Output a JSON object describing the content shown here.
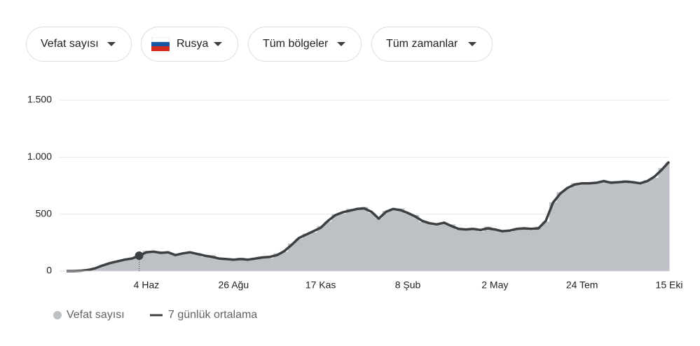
{
  "filters": [
    "Vefat sayısı",
    "Rusya",
    "Tüm bölgeler",
    "Tüm zamanlar"
  ],
  "chart_data": {
    "type": "bar-line",
    "categories": [
      null,
      null,
      null,
      null,
      null,
      null,
      null,
      null,
      null,
      null,
      null,
      "4 Haz",
      null,
      null,
      null,
      null,
      null,
      null,
      null,
      null,
      null,
      null,
      null,
      "26 Ağu",
      null,
      null,
      null,
      null,
      null,
      null,
      null,
      null,
      null,
      null,
      null,
      "17 Kas",
      null,
      null,
      null,
      null,
      null,
      null,
      null,
      null,
      null,
      null,
      null,
      "8 Şub",
      null,
      null,
      null,
      null,
      null,
      null,
      null,
      null,
      null,
      null,
      null,
      "2 May",
      null,
      null,
      null,
      null,
      null,
      null,
      null,
      null,
      null,
      null,
      null,
      "24 Tem",
      null,
      null,
      null,
      null,
      null,
      null,
      null,
      null,
      null,
      null,
      null,
      "15 Eki"
    ],
    "series": [
      {
        "name": "Vefat sayısı",
        "color": "#bdc1c6",
        "values": [
          0,
          0,
          4,
          12,
          22,
          55,
          68,
          90,
          95,
          118,
          128,
          178,
          165,
          168,
          159,
          148,
          152,
          170,
          158,
          122,
          140,
          104,
          110,
          95,
          117,
          96,
          114,
          128,
          113,
          155,
          169,
          242,
          284,
          328,
          338,
          395,
          434,
          498,
          503,
          546,
          539,
          562,
          510,
          464,
          528,
          533,
          550,
          504,
          492,
          430,
          424,
          418,
          413,
          410,
          364,
          369,
          378,
          348,
          390,
          359,
          362,
          345,
          374,
          383,
          358,
          390,
          434,
          604,
          692,
          724,
          772,
          760,
          774,
          783,
          778,
          790,
          774,
          797,
          770,
          774,
          798,
          818,
          905,
          954
        ]
      },
      {
        "name": "7 günlük ortalama",
        "color": "#3c4043",
        "values": [
          0,
          0,
          3,
          10,
          25,
          50,
          70,
          85,
          100,
          110,
          135,
          165,
          170,
          160,
          165,
          140,
          155,
          165,
          150,
          135,
          125,
          110,
          105,
          100,
          105,
          100,
          110,
          120,
          125,
          140,
          175,
          230,
          290,
          320,
          350,
          380,
          440,
          490,
          515,
          530,
          545,
          550,
          520,
          460,
          520,
          545,
          535,
          510,
          480,
          440,
          420,
          410,
          425,
          395,
          370,
          365,
          370,
          360,
          375,
          365,
          350,
          355,
          370,
          375,
          370,
          375,
          440,
          600,
          680,
          730,
          760,
          770,
          770,
          775,
          790,
          775,
          780,
          785,
          780,
          770,
          790,
          830,
          890,
          960
        ]
      }
    ],
    "ylim": [
      0,
      1500
    ],
    "yticks": [
      0,
      500,
      {
        "value": 1000,
        "label": "1.000"
      },
      {
        "value": 1500,
        "label": "1.500"
      }
    ],
    "grid": true
  }
}
